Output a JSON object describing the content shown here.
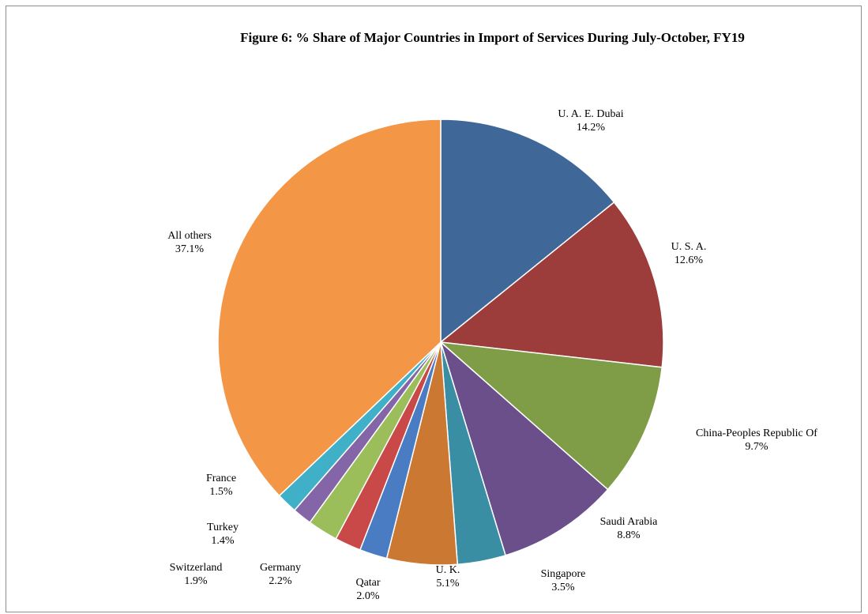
{
  "chart_data": {
    "type": "pie",
    "title": "Figure 6: % Share of Major Countries in Import of Services During July-October,  FY19",
    "slices": [
      {
        "name": "U. A. E. Dubai",
        "value": 14.2,
        "label": "14.2%",
        "color": "#3f6899"
      },
      {
        "name": "U. S. A.",
        "value": 12.6,
        "label": "12.6%",
        "color": "#9c3d3b"
      },
      {
        "name": "China-Peoples Republic Of",
        "value": 9.7,
        "label": "9.7%",
        "color": "#7f9c47"
      },
      {
        "name": "Saudi Arabia",
        "value": 8.8,
        "label": "8.8%",
        "color": "#6a4f8b"
      },
      {
        "name": "Singapore",
        "value": 3.5,
        "label": "3.5%",
        "color": "#3a8ea3"
      },
      {
        "name": "U. K.",
        "value": 5.1,
        "label": "5.1%",
        "color": "#cb7833"
      },
      {
        "name": "Qatar",
        "value": 2.0,
        "label": "2.0%",
        "color": "#4a7cc3"
      },
      {
        "name": "Switzerland",
        "value": 1.9,
        "label": "1.9%",
        "color": "#c94848"
      },
      {
        "name": "Germany",
        "value": 2.2,
        "label": "2.2%",
        "color": "#9bbd5a"
      },
      {
        "name": "Turkey",
        "value": 1.4,
        "label": "1.4%",
        "color": "#8466a8"
      },
      {
        "name": "France",
        "value": 1.5,
        "label": "1.5%",
        "color": "#3fb0c8"
      },
      {
        "name": "All others",
        "value": 37.1,
        "label": "37.1%",
        "color": "#f39646"
      }
    ],
    "legend": "none",
    "start": "top",
    "direction": "clockwise"
  }
}
